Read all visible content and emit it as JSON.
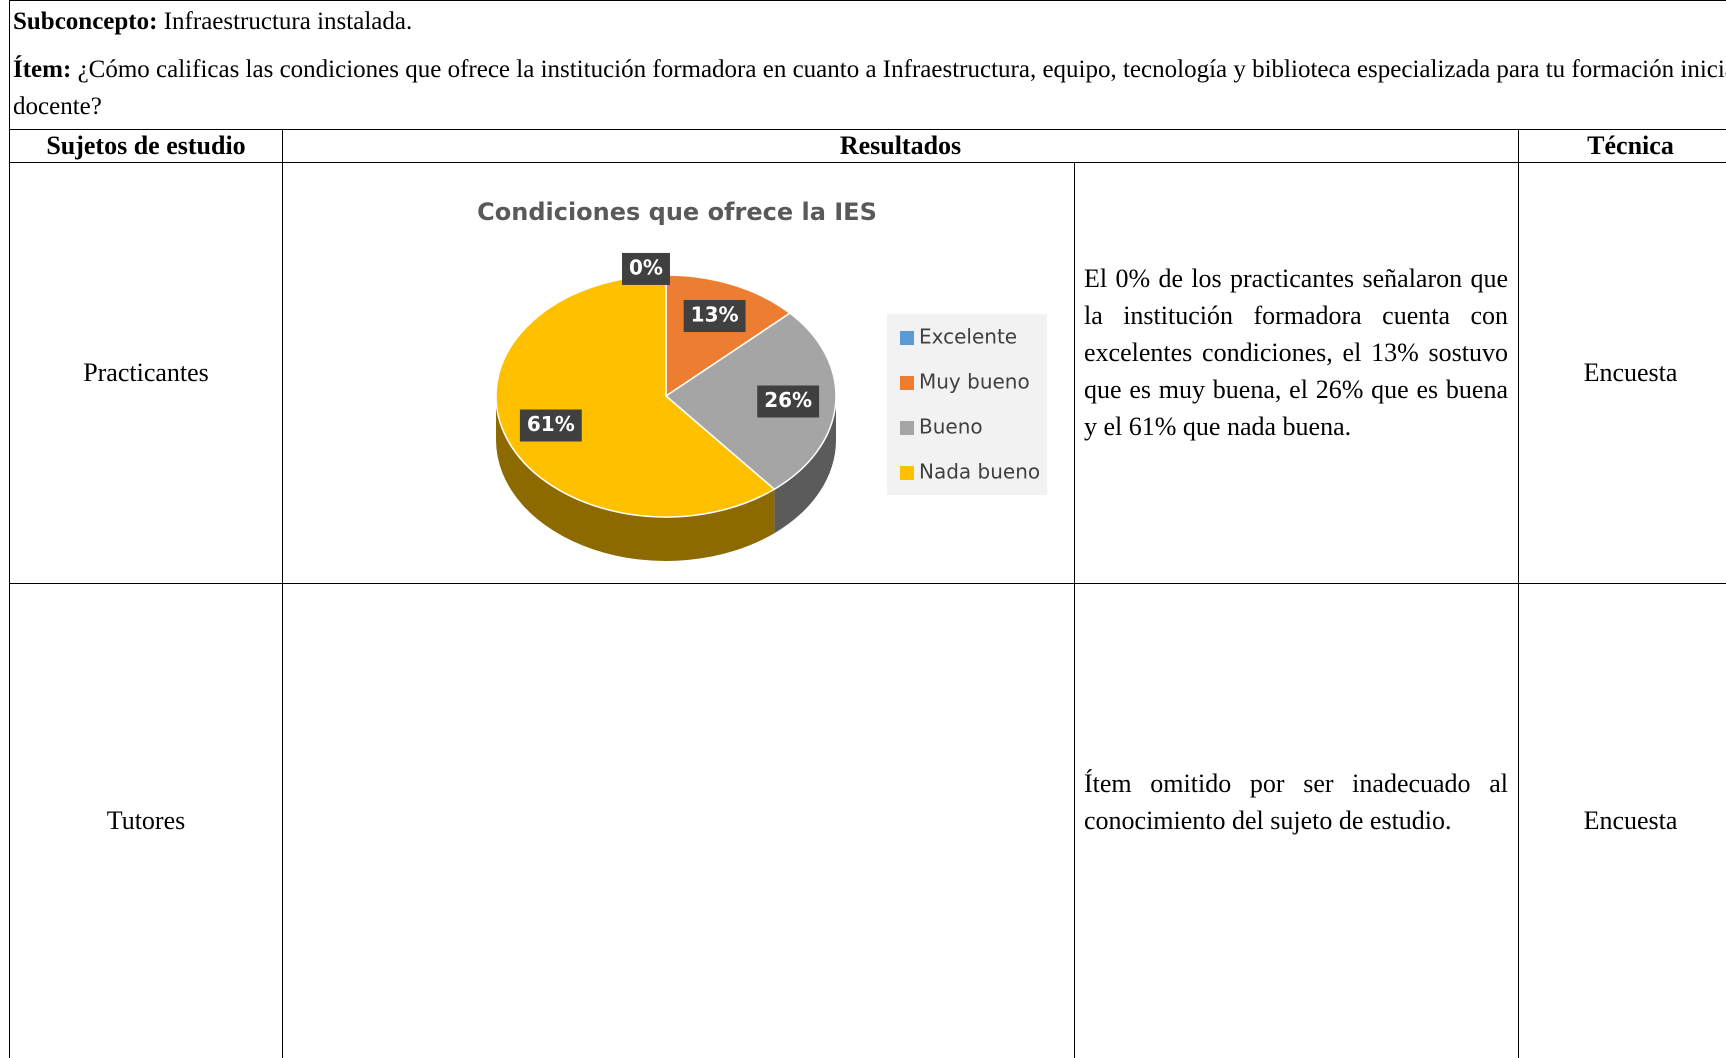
{
  "header": {
    "subconcept_label": "Subconcepto:",
    "subconcept": "Infraestructura instalada.",
    "item_label": "Ítem:",
    "item": "¿Cómo calificas las condiciones que ofrece la institución formadora en cuanto a Infraestructura, equipo, tecnología y biblioteca especializada para tu formación inicial docente?"
  },
  "table": {
    "columns": [
      "Sujetos de estudio",
      "Resultados",
      "Técnica"
    ],
    "rows": [
      {
        "subject": "Practicantes",
        "description": "El 0% de los practicantes señalaron que la institución formadora cuenta con excelentes condiciones, el 13% sostuvo que es muy buena, el 26% que es buena y el 61% que nada buena.",
        "technique": "Encuesta"
      },
      {
        "subject": "Tutores",
        "description": "Ítem omitido por ser inadecuado al conocimiento del sujeto de estudio.",
        "technique": "Encuesta"
      }
    ]
  },
  "chart_data": {
    "type": "pie",
    "title": "Condiciones que ofrece la IES",
    "categories": [
      "Excelente",
      "Muy bueno",
      "Bueno",
      "Nada bueno"
    ],
    "values": [
      0,
      13,
      26,
      61
    ],
    "value_labels": [
      "0%",
      "13%",
      "26%",
      "61%"
    ],
    "colors": [
      "#5b9bd5",
      "#ed7d31",
      "#a5a5a5",
      "#ffc000"
    ],
    "three_d": true
  }
}
